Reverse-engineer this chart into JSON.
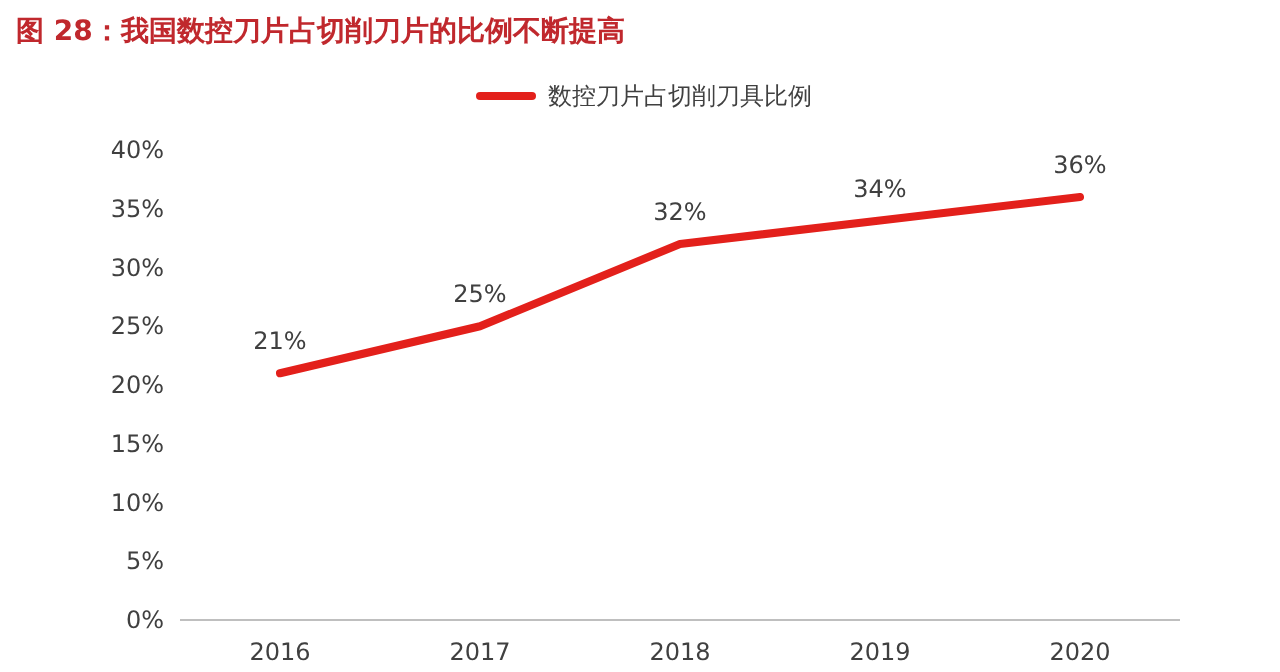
{
  "chart_data": {
    "type": "line",
    "title": "图 28：我国数控刀片占切削刀片的比例不断提高",
    "categories": [
      "2016",
      "2017",
      "2018",
      "2019",
      "2020"
    ],
    "series": [
      {
        "name": "数控刀片占切削刀具比例",
        "color": "#e3201b",
        "values": [
          21,
          25,
          32,
          34,
          36
        ],
        "value_labels": [
          "21%",
          "25%",
          "32%",
          "34%",
          "36%"
        ]
      }
    ],
    "ylim": [
      0,
      40
    ],
    "yticks": [
      {
        "value": 0,
        "label": "0%"
      },
      {
        "value": 5,
        "label": "5%"
      },
      {
        "value": 10,
        "label": "10%"
      },
      {
        "value": 15,
        "label": "15%"
      },
      {
        "value": 20,
        "label": "20%"
      },
      {
        "value": 25,
        "label": "25%"
      },
      {
        "value": 30,
        "label": "30%"
      },
      {
        "value": 35,
        "label": "35%"
      },
      {
        "value": 40,
        "label": "40%"
      }
    ],
    "grid": false,
    "legend": "top",
    "marker": "none",
    "line_style": "solid"
  }
}
